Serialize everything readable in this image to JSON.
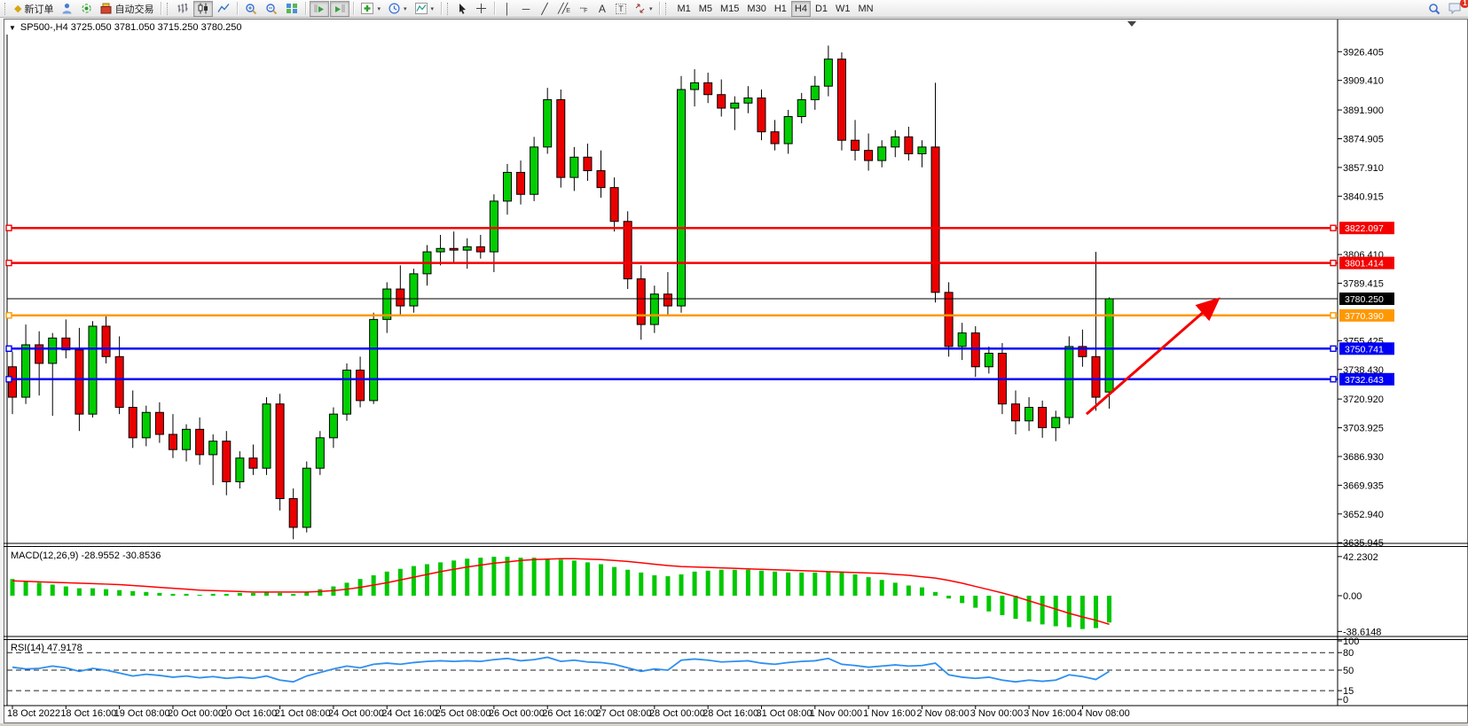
{
  "toolbar": {
    "new_order": "新订单",
    "autotrade": "自动交易",
    "timeframes": [
      "M1",
      "M5",
      "M15",
      "M30",
      "H1",
      "H4",
      "D1",
      "W1",
      "MN"
    ],
    "active_timeframe": "H4",
    "notification_badge": "1"
  },
  "chart": {
    "title": "SP500-,H4  3725.050 3781.050 3715.250 3780.250",
    "symbol": "SP500-",
    "period": "H4",
    "open": "3725.050",
    "high": "3781.050",
    "low": "3715.250",
    "close": "3780.250"
  },
  "colors": {
    "bull": "#00CE00",
    "bear": "#EA0000",
    "wick": "#000000",
    "macd_bar": "#00C800",
    "macd_signal": "#FF0000",
    "rsi_line": "#2E8FEF",
    "red_line": "#F40000",
    "orange_line": "#FF9800",
    "blue_line": "#0000F4",
    "black_line": "#000000",
    "arrow": "#F40000"
  },
  "chart_data": {
    "type": "candlestick+macd+rsi",
    "title": "SP500-,H4",
    "price_axis": {
      "ticks": [
        3926.405,
        3909.41,
        3891.9,
        3874.905,
        3857.91,
        3840.915,
        3806.41,
        3789.415,
        3755.425,
        3738.43,
        3720.92,
        3703.925,
        3686.93,
        3669.935,
        3652.94,
        3635.945
      ]
    },
    "hlines": [
      {
        "price": 3822.097,
        "color": "#F40000",
        "width": 2.5,
        "anchors": true
      },
      {
        "price": 3801.414,
        "color": "#F40000",
        "width": 2.5,
        "anchors": true
      },
      {
        "price": 3780.25,
        "color": "#000000",
        "width": 1,
        "anchors": false
      },
      {
        "price": 3770.39,
        "color": "#FF9800",
        "width": 2.5,
        "anchors": true
      },
      {
        "price": 3750.741,
        "color": "#0000F4",
        "width": 2.5,
        "anchors": true
      },
      {
        "price": 3732.643,
        "color": "#0000F4",
        "width": 2.5,
        "anchors": true
      }
    ],
    "time_axis": {
      "labels": [
        {
          "text": "18 Oct 2022",
          "index": 0
        },
        {
          "text": "18 Oct 16:00",
          "index": 4
        },
        {
          "text": "19 Oct 08:00",
          "index": 8
        },
        {
          "text": "20 Oct 00:00",
          "index": 12
        },
        {
          "text": "20 Oct 16:00",
          "index": 16
        },
        {
          "text": "21 Oct 08:00",
          "index": 20
        },
        {
          "text": "24 Oct 00:00",
          "index": 24
        },
        {
          "text": "24 Oct 16:00",
          "index": 28
        },
        {
          "text": "25 Oct 08:00",
          "index": 32
        },
        {
          "text": "26 Oct 00:00",
          "index": 36
        },
        {
          "text": "26 Oct 16:00",
          "index": 40
        },
        {
          "text": "27 Oct 08:00",
          "index": 44
        },
        {
          "text": "28 Oct 00:00",
          "index": 48
        },
        {
          "text": "28 Oct 16:00",
          "index": 52
        },
        {
          "text": "31 Oct 08:00",
          "index": 56
        },
        {
          "text": "1 Nov 00:00",
          "index": 60
        },
        {
          "text": "1 Nov 16:00",
          "index": 64
        },
        {
          "text": "2 Nov 08:00",
          "index": 68
        },
        {
          "text": "3 Nov 00:00",
          "index": 72
        },
        {
          "text": "3 Nov 16:00",
          "index": 76
        },
        {
          "text": "4 Nov 08:00",
          "index": 80
        }
      ]
    },
    "candles": [
      [
        3740,
        3749,
        3712,
        3722
      ],
      [
        3722,
        3765,
        3718,
        3753
      ],
      [
        3753,
        3761,
        3723,
        3742
      ],
      [
        3742,
        3760,
        3711,
        3757
      ],
      [
        3757,
        3768,
        3745,
        3750
      ],
      [
        3750,
        3763,
        3702,
        3712
      ],
      [
        3712,
        3767,
        3710,
        3764
      ],
      [
        3764,
        3770,
        3742,
        3746
      ],
      [
        3746,
        3758,
        3712,
        3716
      ],
      [
        3716,
        3726,
        3692,
        3698
      ],
      [
        3698,
        3717,
        3693,
        3713
      ],
      [
        3713,
        3719,
        3695,
        3700
      ],
      [
        3700,
        3712,
        3686,
        3691
      ],
      [
        3691,
        3706,
        3684,
        3703
      ],
      [
        3703,
        3710,
        3682,
        3688
      ],
      [
        3688,
        3700,
        3670,
        3696
      ],
      [
        3696,
        3702,
        3664,
        3672
      ],
      [
        3672,
        3690,
        3668,
        3686
      ],
      [
        3686,
        3694,
        3676,
        3680
      ],
      [
        3680,
        3722,
        3676,
        3718
      ],
      [
        3718,
        3724,
        3655,
        3662
      ],
      [
        3662,
        3668,
        3638,
        3645
      ],
      [
        3645,
        3684,
        3642,
        3680
      ],
      [
        3680,
        3702,
        3676,
        3698
      ],
      [
        3698,
        3716,
        3692,
        3712
      ],
      [
        3712,
        3742,
        3708,
        3738
      ],
      [
        3738,
        3746,
        3716,
        3720
      ],
      [
        3720,
        3772,
        3718,
        3768
      ],
      [
        3768,
        3790,
        3760,
        3786
      ],
      [
        3786,
        3800,
        3770,
        3776
      ],
      [
        3776,
        3798,
        3772,
        3795
      ],
      [
        3795,
        3812,
        3788,
        3808
      ],
      [
        3808,
        3818,
        3800,
        3810
      ],
      [
        3810,
        3820,
        3802,
        3809
      ],
      [
        3809,
        3816,
        3798,
        3811
      ],
      [
        3811,
        3818,
        3804,
        3808
      ],
      [
        3808,
        3842,
        3796,
        3838
      ],
      [
        3838,
        3860,
        3830,
        3855
      ],
      [
        3855,
        3862,
        3836,
        3842
      ],
      [
        3842,
        3876,
        3838,
        3870
      ],
      [
        3870,
        3905,
        3866,
        3898
      ],
      [
        3898,
        3904,
        3846,
        3852
      ],
      [
        3852,
        3870,
        3844,
        3864
      ],
      [
        3864,
        3872,
        3850,
        3856
      ],
      [
        3856,
        3868,
        3840,
        3846
      ],
      [
        3846,
        3852,
        3820,
        3826
      ],
      [
        3826,
        3832,
        3786,
        3792
      ],
      [
        3792,
        3800,
        3756,
        3765
      ],
      [
        3765,
        3788,
        3760,
        3783
      ],
      [
        3783,
        3796,
        3770,
        3776
      ],
      [
        3776,
        3912,
        3772,
        3904
      ],
      [
        3904,
        3916,
        3894,
        3908
      ],
      [
        3908,
        3914,
        3896,
        3901
      ],
      [
        3901,
        3910,
        3888,
        3893
      ],
      [
        3893,
        3900,
        3880,
        3896
      ],
      [
        3896,
        3906,
        3890,
        3899
      ],
      [
        3899,
        3904,
        3874,
        3879
      ],
      [
        3879,
        3886,
        3868,
        3872
      ],
      [
        3872,
        3892,
        3866,
        3888
      ],
      [
        3888,
        3902,
        3884,
        3898
      ],
      [
        3898,
        3912,
        3892,
        3906
      ],
      [
        3906,
        3930,
        3900,
        3922
      ],
      [
        3922,
        3926,
        3868,
        3874
      ],
      [
        3874,
        3886,
        3862,
        3868
      ],
      [
        3868,
        3878,
        3856,
        3862
      ],
      [
        3862,
        3874,
        3858,
        3870
      ],
      [
        3870,
        3880,
        3864,
        3876
      ],
      [
        3876,
        3882,
        3862,
        3866
      ],
      [
        3866,
        3874,
        3858,
        3870
      ],
      [
        3870,
        3908,
        3778,
        3784
      ],
      [
        3784,
        3790,
        3746,
        3752
      ],
      [
        3752,
        3766,
        3744,
        3760
      ],
      [
        3760,
        3764,
        3734,
        3740
      ],
      [
        3740,
        3752,
        3736,
        3748
      ],
      [
        3748,
        3754,
        3712,
        3718
      ],
      [
        3718,
        3726,
        3700,
        3708
      ],
      [
        3708,
        3722,
        3702,
        3716
      ],
      [
        3716,
        3720,
        3698,
        3704
      ],
      [
        3704,
        3714,
        3696,
        3710
      ],
      [
        3710,
        3758,
        3706,
        3752
      ],
      [
        3752,
        3762,
        3740,
        3746
      ],
      [
        3746,
        3808,
        3714,
        3722
      ],
      [
        3725.05,
        3781.05,
        3715.25,
        3780.25
      ]
    ],
    "macd": {
      "label": "MACD(12,26,9) -28.9552 -30.8536",
      "axis": [
        {
          "text": "42.2302",
          "value": 42.2302
        },
        {
          "text": "0.00",
          "value": 0
        },
        {
          "text": "-38.6148",
          "value": -38.6148
        }
      ],
      "histogram": [
        18,
        16,
        14,
        12,
        10,
        8,
        8,
        7,
        6,
        5,
        4,
        3,
        2,
        2,
        1,
        2,
        2,
        3,
        3,
        4,
        3,
        2,
        4,
        7,
        10,
        14,
        18,
        22,
        26,
        29,
        32,
        34,
        36,
        38,
        40,
        41,
        42,
        42,
        41,
        41,
        40,
        39,
        38,
        36,
        34,
        31,
        28,
        25,
        22,
        21,
        23,
        26,
        27,
        28,
        28,
        28,
        27,
        26,
        25,
        25,
        25,
        26,
        25,
        23,
        20,
        17,
        14,
        11,
        9,
        4,
        -3,
        -8,
        -13,
        -17,
        -21,
        -25,
        -28,
        -31,
        -33,
        -34,
        -36,
        -35,
        -28.9552
      ],
      "signal": [
        16,
        15.5,
        15,
        14.5,
        14,
        13.5,
        13,
        12.5,
        12,
        11,
        10,
        9,
        8,
        7,
        6,
        5.5,
        5,
        4.5,
        4,
        4,
        4,
        4,
        4,
        4.5,
        5.5,
        7,
        9,
        11.5,
        14,
        17,
        20,
        23,
        26,
        28.5,
        31,
        33,
        35,
        36.5,
        38,
        39,
        39.5,
        40,
        40,
        39.5,
        39,
        38,
        37,
        35.5,
        34,
        32.5,
        31.5,
        31,
        30.5,
        30,
        29.5,
        29,
        28.5,
        28,
        27.5,
        27,
        26.5,
        26,
        25.5,
        25,
        24.5,
        24,
        23,
        22,
        20.5,
        19,
        16.5,
        13.5,
        10,
        6.5,
        3,
        -1,
        -5.5,
        -10,
        -14.5,
        -19,
        -23,
        -26.5,
        -30.8536
      ]
    },
    "rsi": {
      "label": "RSI(14) 47.9178",
      "axis_ticks": [
        100,
        80,
        50,
        15,
        0
      ],
      "level_lines": [
        80,
        50,
        15
      ],
      "values": [
        55,
        52,
        53,
        57,
        54,
        48,
        53,
        50,
        45,
        40,
        43,
        41,
        38,
        40,
        37,
        39,
        36,
        38,
        36,
        40,
        33,
        30,
        40,
        46,
        52,
        57,
        54,
        60,
        62,
        60,
        63,
        65,
        66,
        65,
        66,
        65,
        68,
        70,
        66,
        68,
        72,
        65,
        67,
        64,
        63,
        60,
        54,
        48,
        52,
        50,
        67,
        69,
        67,
        64,
        65,
        66,
        62,
        60,
        63,
        65,
        66,
        70,
        60,
        58,
        55,
        57,
        59,
        57,
        58,
        62,
        42,
        38,
        36,
        38,
        33,
        30,
        33,
        31,
        33,
        42,
        39,
        34,
        47.9178
      ]
    },
    "arrow": {
      "from_index": 80.3,
      "from_price": 3712,
      "to_index": 90,
      "to_price": 3779
    }
  }
}
